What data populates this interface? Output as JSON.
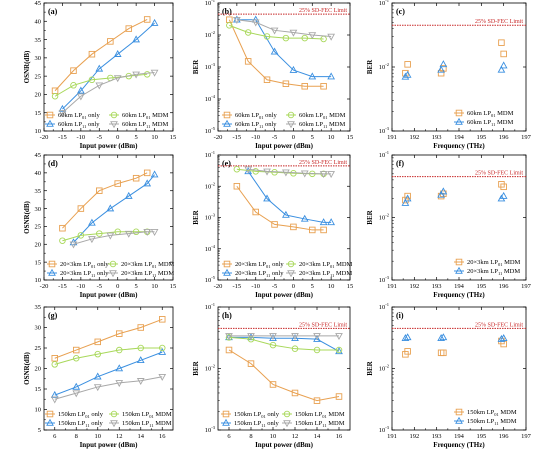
{
  "colors": {
    "orange": "#E8A050",
    "green": "#A8D85A",
    "blue": "#3A8FE0",
    "gray": "#A8A8A8",
    "limit": "#C82828",
    "frame": "#000000"
  },
  "chart_data": [
    {
      "id": "a",
      "panel_label": "(a)",
      "type": "line",
      "xlabel": "Input power (dBm)",
      "ylabel": "OSNR(dB)",
      "xlim": [
        -20,
        15
      ],
      "ylim": [
        10,
        45
      ],
      "log_y": false,
      "xticks": [
        -20,
        -15,
        -10,
        -5,
        0,
        5,
        10,
        15
      ],
      "yticks": [
        10,
        15,
        20,
        25,
        30,
        35,
        40,
        45
      ],
      "legend_position": "bottom-right",
      "series": [
        {
          "name": "60km LP01 only",
          "name_main": "60km LP",
          "name_sub": "01",
          "name_tail": " only",
          "color": "orange",
          "marker": "square",
          "x": [
            -17,
            -12,
            -7,
            -2,
            3,
            8
          ],
          "y": [
            21,
            26.5,
            31,
            34.5,
            38,
            40.5
          ]
        },
        {
          "name": "60km LP11 only",
          "name_main": "60km LP",
          "name_sub": "11",
          "name_tail": " only",
          "color": "blue",
          "marker": "triangle",
          "x": [
            -15,
            -10,
            -5,
            0,
            5,
            10
          ],
          "y": [
            16,
            21,
            27,
            31,
            35,
            39.5
          ]
        },
        {
          "name": "60km LP01 MDM",
          "name_main": "60km LP",
          "name_sub": "01",
          "name_tail": " MDM",
          "color": "green",
          "marker": "circle",
          "x": [
            -17,
            -12,
            -7,
            -2,
            3,
            8
          ],
          "y": [
            19.5,
            22.5,
            24,
            24.5,
            25,
            25.5
          ]
        },
        {
          "name": "60km LP11 MDM",
          "name_main": "60km LP",
          "name_sub": "11",
          "name_tail": " MDM",
          "color": "gray",
          "marker": "triangle-down",
          "x": [
            -15,
            -10,
            -5,
            0,
            5,
            10
          ],
          "y": [
            15,
            19.5,
            22.5,
            24.5,
            25.5,
            26
          ]
        }
      ]
    },
    {
      "id": "b",
      "panel_label": "(b)",
      "type": "line",
      "xlabel": "Input power (dBm)",
      "ylabel": "BER",
      "xlim": [
        -20,
        15
      ],
      "log_y": true,
      "ylim_exp": [
        -5,
        -1
      ],
      "xticks": [
        -20,
        -15,
        -10,
        -5,
        0,
        5,
        10,
        15
      ],
      "limit_value": 0.045,
      "limit_label": "25% SD-FEC Limit",
      "legend_position": "bottom-right",
      "series": [
        {
          "name": "60km LP01 only",
          "name_main": "60km LP",
          "name_sub": "01",
          "name_tail": " only",
          "color": "orange",
          "marker": "square",
          "x": [
            -17,
            -12,
            -7,
            -2,
            3,
            8
          ],
          "y": [
            0.03,
            0.0015,
            0.0004,
            0.0003,
            0.00025,
            0.00025
          ]
        },
        {
          "name": "60km LP11 only",
          "name_main": "60km LP",
          "name_sub": "11",
          "name_tail": " only",
          "color": "blue",
          "marker": "triangle",
          "x": [
            -15,
            -10,
            -5,
            0,
            5,
            10
          ],
          "y": [
            0.03,
            0.03,
            0.003,
            0.0008,
            0.0005,
            0.0005
          ]
        },
        {
          "name": "60km LP01 MDM",
          "name_main": "60km LP",
          "name_sub": "01",
          "name_tail": " MDM",
          "color": "green",
          "marker": "circle",
          "x": [
            -17,
            -12,
            -7,
            -2,
            3,
            8
          ],
          "y": [
            0.02,
            0.012,
            0.009,
            0.008,
            0.008,
            0.0075
          ]
        },
        {
          "name": "60km LP11 MDM",
          "name_main": "60km LP",
          "name_sub": "11",
          "name_tail": " MDM",
          "color": "gray",
          "marker": "triangle-down",
          "x": [
            -15,
            -10,
            -5,
            0,
            5,
            10
          ],
          "y": [
            0.03,
            0.025,
            0.014,
            0.012,
            0.01,
            0.009
          ]
        }
      ]
    },
    {
      "id": "c",
      "panel_label": "(c)",
      "type": "scatter",
      "xlabel": "Frequency (THz)",
      "ylabel": "BER",
      "xlim": [
        191,
        197
      ],
      "log_y": true,
      "ylim_exp": [
        -3,
        -1
      ],
      "xticks": [
        191,
        192,
        193,
        194,
        195,
        196,
        197
      ],
      "limit_value": 0.045,
      "limit_label": "25% SD-FEC Limit",
      "legend_position": "bottom-right",
      "series": [
        {
          "name": "60km LP01 MDM",
          "name_main": "60km LP",
          "name_sub": "01",
          "name_tail": " MDM",
          "color": "orange",
          "marker": "square",
          "x": [
            191.6,
            191.7,
            193.2,
            193.3,
            195.9,
            196.0
          ],
          "y": [
            0.008,
            0.011,
            0.008,
            0.0095,
            0.024,
            0.016
          ]
        },
        {
          "name": "60km LP11 MDM",
          "name_main": "60km LP",
          "name_sub": "11",
          "name_tail": " MDM",
          "color": "blue",
          "marker": "triangle",
          "x": [
            191.6,
            191.7,
            193.2,
            193.3,
            195.9,
            196.0
          ],
          "y": [
            0.007,
            0.0075,
            0.009,
            0.011,
            0.009,
            0.0105
          ]
        }
      ]
    },
    {
      "id": "d",
      "panel_label": "(d)",
      "type": "line",
      "xlabel": "Input power (dBm)",
      "ylabel": "OSNR(dB)",
      "xlim": [
        -20,
        15
      ],
      "ylim": [
        10,
        45
      ],
      "log_y": false,
      "xticks": [
        -20,
        -15,
        -10,
        -5,
        0,
        5,
        10,
        15
      ],
      "yticks": [
        10,
        15,
        20,
        25,
        30,
        35,
        40,
        45
      ],
      "legend_position": "bottom-left",
      "series": [
        {
          "name": "20×3km LP01 only",
          "name_main": "20×3km LP",
          "name_sub": "01",
          "name_tail": " only",
          "color": "orange",
          "marker": "square",
          "x": [
            -15,
            -10,
            -5,
            0,
            5,
            8
          ],
          "y": [
            24.5,
            30,
            35,
            37,
            38.5,
            40
          ]
        },
        {
          "name": "20×3km LP11 only",
          "name_main": "20×3km LP",
          "name_sub": "11",
          "name_tail": " only",
          "color": "blue",
          "marker": "triangle",
          "x": [
            -12,
            -7,
            -2,
            3,
            8,
            10
          ],
          "y": [
            20.5,
            26,
            30,
            33.5,
            37,
            39.5
          ]
        },
        {
          "name": "20×3km LP01 MDM",
          "name_main": "20×3km LP",
          "name_sub": "01",
          "name_tail": " MDM",
          "color": "green",
          "marker": "circle",
          "x": [
            -15,
            -10,
            -5,
            0,
            5,
            8
          ],
          "y": [
            21,
            22.5,
            23,
            23.5,
            23.5,
            23.5
          ]
        },
        {
          "name": "20×3km LP11 MDM",
          "name_main": "20×3km LP",
          "name_sub": "11",
          "name_tail": " MDM",
          "color": "gray",
          "marker": "triangle-down",
          "x": [
            -12,
            -7,
            -2,
            3,
            8,
            10
          ],
          "y": [
            20,
            21.5,
            22.5,
            23,
            23.5,
            23.5
          ]
        }
      ]
    },
    {
      "id": "e",
      "panel_label": "(e)",
      "type": "line",
      "xlabel": "Input power (dBm)",
      "ylabel": "BER",
      "xlim": [
        -20,
        15
      ],
      "log_y": true,
      "ylim_exp": [
        -5,
        -1
      ],
      "xticks": [
        -20,
        -15,
        -10,
        -5,
        0,
        5,
        10,
        15
      ],
      "limit_value": 0.045,
      "limit_label": "25% SD-FEC Limit",
      "legend_position": "bottom-right",
      "series": [
        {
          "name": "20×3km LP01 only",
          "name_main": "20×3km LP",
          "name_sub": "01",
          "name_tail": " only",
          "color": "orange",
          "marker": "square",
          "x": [
            -15,
            -10,
            -5,
            0,
            5,
            8
          ],
          "y": [
            0.01,
            0.0015,
            0.0006,
            0.0005,
            0.0004,
            0.0004
          ]
        },
        {
          "name": "20×3km LP11 only",
          "name_main": "20×3km LP",
          "name_sub": "11",
          "name_tail": " only",
          "color": "blue",
          "marker": "triangle",
          "x": [
            -12,
            -7,
            -2,
            3,
            8,
            10
          ],
          "y": [
            0.03,
            0.004,
            0.0012,
            0.0009,
            0.0007,
            0.0007
          ]
        },
        {
          "name": "20×3km LP01 MDM",
          "name_main": "20×3km LP",
          "name_sub": "01",
          "name_tail": " MDM",
          "color": "green",
          "marker": "circle",
          "x": [
            -15,
            -10,
            -5,
            0,
            5,
            8
          ],
          "y": [
            0.035,
            0.03,
            0.028,
            0.026,
            0.025,
            0.025
          ]
        },
        {
          "name": "20×3km LP11 MDM",
          "name_main": "20×3km LP",
          "name_sub": "11",
          "name_tail": " MDM",
          "color": "gray",
          "marker": "triangle-down",
          "x": [
            -12,
            -7,
            -2,
            3,
            8,
            10
          ],
          "y": [
            0.035,
            0.03,
            0.028,
            0.026,
            0.025,
            0.025
          ]
        }
      ]
    },
    {
      "id": "f",
      "panel_label": "(f)",
      "type": "scatter",
      "xlabel": "Frequency (THz)",
      "ylabel": "BER",
      "xlim": [
        191,
        197
      ],
      "log_y": true,
      "ylim_exp": [
        -3,
        -1
      ],
      "xticks": [
        191,
        192,
        193,
        194,
        195,
        196,
        197
      ],
      "limit_value": 0.045,
      "limit_label": "25% SD-FEC Limit",
      "legend_position": "bottom-right",
      "series": [
        {
          "name": "20×3km LP01 MDM",
          "name_main": "20×3km LP",
          "name_sub": "01",
          "name_tail": " MDM",
          "color": "orange",
          "marker": "square",
          "x": [
            191.6,
            191.7,
            193.2,
            193.3,
            195.9,
            196.0
          ],
          "y": [
            0.019,
            0.022,
            0.022,
            0.024,
            0.034,
            0.031
          ]
        },
        {
          "name": "20×3km LP11 MDM",
          "name_main": "20×3km LP",
          "name_sub": "11",
          "name_tail": " MDM",
          "color": "blue",
          "marker": "triangle",
          "x": [
            191.6,
            191.7,
            193.2,
            193.3,
            195.9,
            196.0
          ],
          "y": [
            0.017,
            0.02,
            0.023,
            0.026,
            0.02,
            0.022
          ]
        }
      ]
    },
    {
      "id": "g",
      "panel_label": "(g)",
      "type": "line",
      "xlabel": "Input power (dBm)",
      "ylabel": "OSNR(dB)",
      "xlim": [
        5,
        17
      ],
      "ylim": [
        5,
        35
      ],
      "log_y": false,
      "xticks": [
        6,
        8,
        10,
        12,
        14,
        16
      ],
      "yticks": [
        5,
        10,
        15,
        20,
        25,
        30,
        35
      ],
      "legend_position": "bottom-right",
      "series": [
        {
          "name": "150km LP01 only",
          "name_main": "150km LP",
          "name_sub": "01",
          "name_tail": " only",
          "color": "orange",
          "marker": "square",
          "x": [
            6,
            8,
            10,
            12,
            14,
            16
          ],
          "y": [
            22.5,
            24.5,
            26.5,
            28.5,
            30,
            32
          ]
        },
        {
          "name": "150km LP11 only",
          "name_main": "150km LP",
          "name_sub": "11",
          "name_tail": " only",
          "color": "blue",
          "marker": "triangle",
          "x": [
            6,
            8,
            10,
            12,
            14,
            16
          ],
          "y": [
            13.5,
            15.5,
            18,
            20,
            22,
            24
          ]
        },
        {
          "name": "150km LP01 MDM",
          "name_main": "150km LP",
          "name_sub": "01",
          "name_tail": " MDM",
          "color": "green",
          "marker": "circle",
          "x": [
            6,
            8,
            10,
            12,
            14,
            16
          ],
          "y": [
            21,
            22.5,
            23.5,
            24.5,
            25,
            25
          ]
        },
        {
          "name": "150km LP11 MDM",
          "name_main": "150km LP",
          "name_sub": "11",
          "name_tail": " MDM",
          "color": "gray",
          "marker": "triangle-down",
          "x": [
            6,
            8,
            10,
            12,
            14,
            16
          ],
          "y": [
            12.5,
            14,
            15.5,
            16.5,
            17,
            18
          ]
        }
      ]
    },
    {
      "id": "h",
      "panel_label": "(h)",
      "type": "line",
      "xlabel": "Input power (dBm)",
      "ylabel": "BER",
      "xlim": [
        5,
        17
      ],
      "log_y": true,
      "ylim_exp": [
        -3,
        -1
      ],
      "xticks": [
        6,
        8,
        10,
        12,
        14,
        16
      ],
      "limit_value": 0.045,
      "limit_label": "25% SD-FEC Limit",
      "legend_position": "bottom-left",
      "series": [
        {
          "name": "150km LP01 only",
          "name_main": "150km LP",
          "name_sub": "01",
          "name_tail": " only",
          "color": "orange",
          "marker": "square",
          "x": [
            6,
            8,
            10,
            12,
            14,
            16
          ],
          "y": [
            0.02,
            0.012,
            0.0055,
            0.004,
            0.003,
            0.0035
          ]
        },
        {
          "name": "150km LP11 only",
          "name_main": "150km LP",
          "name_sub": "11",
          "name_tail": " only",
          "color": "blue",
          "marker": "triangle",
          "x": [
            6,
            8,
            10,
            12,
            14,
            16
          ],
          "y": [
            0.032,
            0.032,
            0.031,
            0.031,
            0.03,
            0.019
          ]
        },
        {
          "name": "150km LP01 MDM",
          "name_main": "150km LP",
          "name_sub": "01",
          "name_tail": " MDM",
          "color": "green",
          "marker": "circle",
          "x": [
            6,
            8,
            10,
            12,
            14,
            16
          ],
          "y": [
            0.032,
            0.03,
            0.024,
            0.021,
            0.02,
            0.02
          ]
        },
        {
          "name": "150km LP11 MDM",
          "name_main": "150km LP",
          "name_sub": "11",
          "name_tail": " MDM",
          "color": "gray",
          "marker": "triangle-down",
          "x": [
            6,
            8,
            10,
            12,
            14,
            16
          ],
          "y": [
            0.034,
            0.034,
            0.034,
            0.034,
            0.034,
            0.034
          ]
        }
      ]
    },
    {
      "id": "i",
      "panel_label": "(i)",
      "type": "scatter",
      "xlabel": "Frequency (THz)",
      "ylabel": "BER",
      "xlim": [
        191,
        197
      ],
      "log_y": true,
      "ylim_exp": [
        -3,
        -1
      ],
      "xticks": [
        191,
        192,
        193,
        194,
        195,
        196,
        197
      ],
      "limit_value": 0.045,
      "limit_label": "25% SD-FEC Limit",
      "legend_position": "bottom-right",
      "series": [
        {
          "name": "150km LP01 MDM",
          "name_main": "150km LP",
          "name_sub": "01",
          "name_tail": " MDM",
          "color": "orange",
          "marker": "square",
          "x": [
            191.6,
            191.7,
            193.2,
            193.3,
            195.9,
            196.0
          ],
          "y": [
            0.017,
            0.019,
            0.018,
            0.018,
            0.028,
            0.025
          ]
        },
        {
          "name": "150km LP11 MDM",
          "name_main": "150km LP",
          "name_sub": "11",
          "name_tail": " MDM",
          "color": "blue",
          "marker": "triangle",
          "x": [
            191.6,
            191.7,
            193.2,
            193.3,
            195.9,
            196.0
          ],
          "y": [
            0.031,
            0.032,
            0.031,
            0.032,
            0.03,
            0.031
          ]
        }
      ]
    }
  ]
}
